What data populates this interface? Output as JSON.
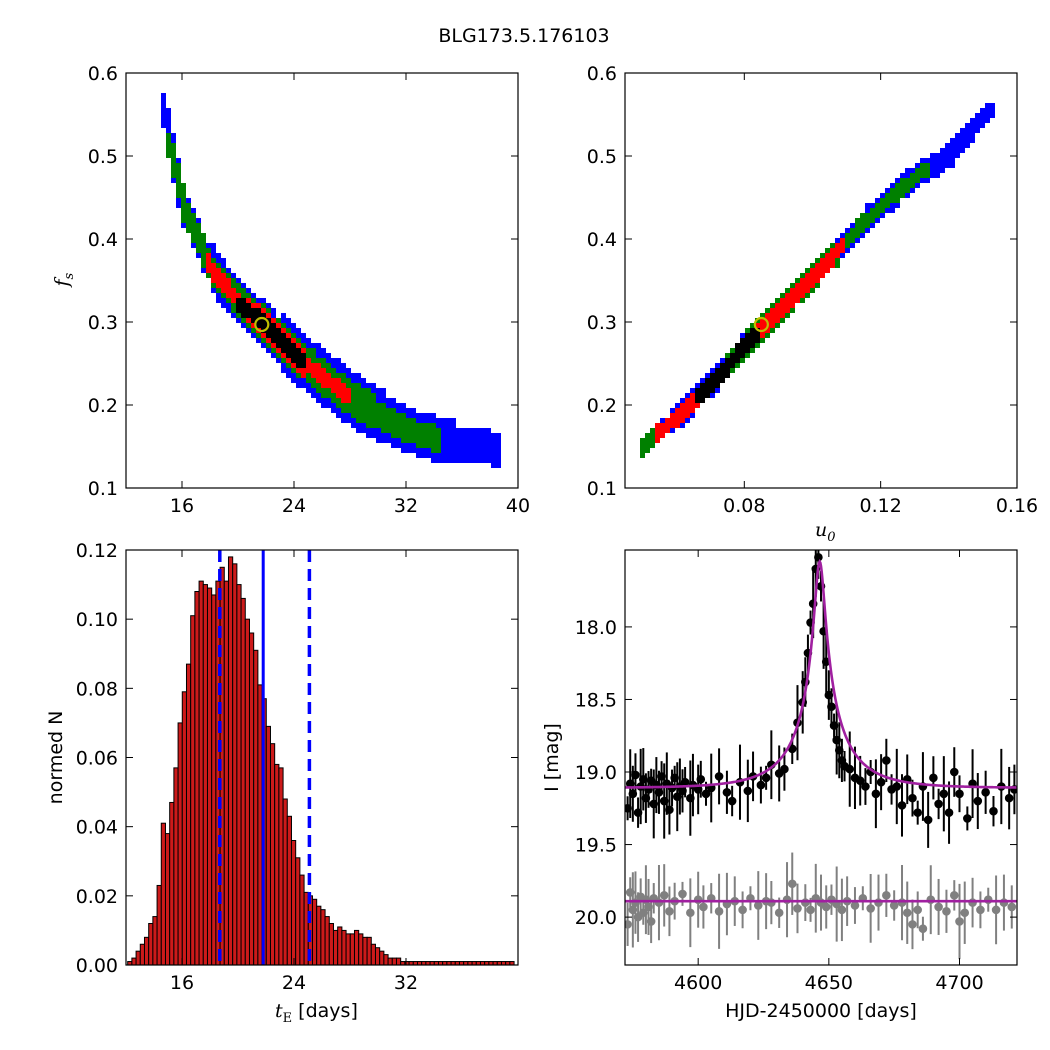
{
  "figure": {
    "title": "BLG173.5.176103"
  },
  "colors": {
    "contour3": "#0000ff",
    "contour2": "#008000",
    "contour1": "#ff0000",
    "core": "#000000",
    "best_fit_ring": "#bfbf00",
    "hist_bar": "#cc1a1a",
    "median_line": "#0000ff",
    "model_curve": "#a020a0",
    "data_main": "#000000",
    "data_second": "#808080"
  },
  "chart_data": [
    {
      "type": "heatmap",
      "panel": "tE-fs",
      "title": "",
      "xlabel": "",
      "ylabel_main": "f",
      "ylabel_sub": "s",
      "xlim": [
        12,
        40
      ],
      "ylim": [
        0.1,
        0.6
      ],
      "xticks": [
        "16",
        "24",
        "32",
        "40"
      ],
      "xtick_values": [
        16,
        24,
        32,
        40
      ],
      "yticks": [
        "0.1",
        "0.2",
        "0.3",
        "0.4",
        "0.5",
        "0.6"
      ],
      "ytick_values": [
        0.1,
        0.2,
        0.3,
        0.4,
        0.5,
        0.6
      ],
      "ridge": [
        [
          14.5,
          0.555
        ],
        [
          16,
          0.44
        ],
        [
          18,
          0.365
        ],
        [
          20,
          0.325
        ],
        [
          22,
          0.295
        ],
        [
          24,
          0.262
        ],
        [
          26,
          0.235
        ],
        [
          28,
          0.21
        ],
        [
          30,
          0.19
        ],
        [
          32,
          0.172
        ],
        [
          34,
          0.162
        ],
        [
          36,
          0.155
        ],
        [
          38.5,
          0.15
        ]
      ],
      "best_fit": {
        "x": 21.7,
        "y": 0.297
      },
      "regions": [
        {
          "level": "3-sigma",
          "width": 0.026,
          "t0": 0.0,
          "t1": 1.0
        },
        {
          "level": "2-sigma",
          "width": 0.016,
          "t0": 0.02,
          "t1": 0.82
        },
        {
          "level": "1-sigma",
          "width": 0.009,
          "t0": 0.13,
          "t1": 0.55
        },
        {
          "level": "core",
          "width": 0.003,
          "t0": 0.23,
          "t1": 0.42
        }
      ]
    },
    {
      "type": "heatmap",
      "panel": "u0-fs",
      "title": "",
      "xlabel_main": "u",
      "xlabel_sub": "0",
      "ylabel": "",
      "xlim": [
        0.045,
        0.16
      ],
      "ylim": [
        0.1,
        0.6
      ],
      "xticks": [
        "0.08",
        "0.12",
        "0.16"
      ],
      "xtick_values": [
        0.08,
        0.12,
        0.16
      ],
      "yticks": [
        "0.1",
        "0.2",
        "0.3",
        "0.4",
        "0.5",
        "0.6"
      ],
      "ytick_values": [
        0.1,
        0.2,
        0.3,
        0.4,
        0.5,
        0.6
      ],
      "ridge": [
        [
          0.049,
          0.15
        ],
        [
          0.06,
          0.19
        ],
        [
          0.072,
          0.24
        ],
        [
          0.085,
          0.297
        ],
        [
          0.1,
          0.36
        ],
        [
          0.115,
          0.425
        ],
        [
          0.13,
          0.48
        ],
        [
          0.14,
          0.505
        ],
        [
          0.152,
          0.56
        ]
      ],
      "best_fit": {
        "x": 0.085,
        "y": 0.297
      },
      "regions": [
        {
          "level": "3-sigma",
          "width": 0.013,
          "t0": 0.03,
          "t1": 1.0
        },
        {
          "level": "2-sigma",
          "width": 0.009,
          "t0": 0.0,
          "t1": 0.82
        },
        {
          "level": "1-sigma",
          "width": 0.005,
          "t0": 0.04,
          "t1": 0.6
        },
        {
          "level": "core",
          "width": 0.002,
          "t0": 0.16,
          "t1": 0.34
        }
      ]
    },
    {
      "type": "bar",
      "panel": "tE-histogram",
      "title": "",
      "xlabel_main": "t",
      "xlabel_sub": "E",
      "xlabel_rest": "  [days]",
      "ylabel": "normed N",
      "xlim": [
        12,
        40
      ],
      "ylim": [
        0,
        0.12
      ],
      "xticks": [
        "16",
        "24",
        "32"
      ],
      "xtick_values": [
        16,
        24,
        32
      ],
      "yticks": [
        "0.00",
        "0.02",
        "0.04",
        "0.06",
        "0.08",
        "0.10",
        "0.12"
      ],
      "ytick_values": [
        0,
        0.02,
        0.04,
        0.06,
        0.08,
        0.1,
        0.12
      ],
      "bin_start": 12.12,
      "bin_width": 0.3,
      "values": [
        0.001,
        0.002,
        0.004,
        0.006,
        0.008,
        0.012,
        0.014,
        0.023,
        0.041,
        0.038,
        0.047,
        0.057,
        0.07,
        0.079,
        0.087,
        0.101,
        0.108,
        0.111,
        0.11,
        0.109,
        0.107,
        0.111,
        0.115,
        0.111,
        0.118,
        0.116,
        0.11,
        0.106,
        0.1,
        0.096,
        0.091,
        0.081,
        0.077,
        0.069,
        0.064,
        0.058,
        0.057,
        0.048,
        0.043,
        0.036,
        0.031,
        0.026,
        0.021,
        0.02,
        0.019,
        0.017,
        0.016,
        0.014,
        0.012,
        0.01,
        0.011,
        0.01,
        0.009,
        0.009,
        0.01,
        0.009,
        0.008,
        0.008,
        0.006,
        0.005,
        0.004,
        0.003,
        0.002,
        0.002,
        0.002,
        0.001,
        0.001,
        0.001,
        0.001,
        0.001,
        0.001,
        0.001,
        0.001,
        0.001,
        0.001,
        0.001,
        0.001,
        0.001,
        0.001,
        0.001,
        0.001,
        0.001,
        0.001,
        0.001,
        0.001,
        0.001,
        0.001,
        0.001,
        0.001,
        0.001,
        0.001,
        0.001
      ],
      "median": 21.8,
      "interval": [
        18.7,
        25.1
      ]
    },
    {
      "type": "scatter",
      "panel": "light-curve",
      "title": "",
      "xlabel": "HJD-2450000 [days]",
      "ylabel": "I [mag]",
      "xlim": [
        4572,
        4722
      ],
      "ylim": [
        20.33,
        17.47
      ],
      "xticks": [
        "4600",
        "4650",
        "4700"
      ],
      "xtick_values": [
        4600,
        4650,
        4700
      ],
      "yticks": [
        "18.0",
        "18.5",
        "19.0",
        "19.5",
        "20.0"
      ],
      "ytick_values": [
        18.0,
        18.5,
        19.0,
        19.5,
        20.0
      ],
      "model": {
        "t0": 4646.5,
        "tE": 21.7,
        "u0": 0.085,
        "fs": 0.297,
        "baseline": 19.11,
        "second_baseline": 19.89
      },
      "series": [
        {
          "points": [
            [
              4573,
              19.25
            ],
            [
              4574,
              19.08
            ],
            [
              4575,
              19.15
            ],
            [
              4576,
              19.02
            ],
            [
              4577,
              19.28
            ],
            [
              4578,
              19.1
            ],
            [
              4579,
              19.05
            ],
            [
              4580,
              19.18
            ],
            [
              4581,
              19.12
            ],
            [
              4582,
              19.06
            ],
            [
              4583,
              19.22
            ],
            [
              4584,
              19.09
            ],
            [
              4585,
              19.14
            ],
            [
              4586,
              19.03
            ],
            [
              4587,
              19.2
            ],
            [
              4588,
              19.08
            ],
            [
              4589,
              19.26
            ],
            [
              4590,
              19.11
            ],
            [
              4591,
              19.04
            ],
            [
              4592,
              19.17
            ],
            [
              4593,
              19.1
            ],
            [
              4594,
              19.13
            ],
            [
              4595,
              19.07
            ],
            [
              4597,
              19.18
            ],
            [
              4598,
              19.09
            ],
            [
              4600,
              19.12
            ],
            [
              4601,
              19.05
            ],
            [
              4603,
              19.15
            ],
            [
              4605,
              19.11
            ],
            [
              4608,
              19.03
            ],
            [
              4611,
              19.14
            ],
            [
              4613,
              19.2
            ],
            [
              4616,
              19.07
            ],
            [
              4619,
              19.13
            ],
            [
              4621,
              19.03
            ],
            [
              4624,
              19.09
            ],
            [
              4626,
              19.04
            ],
            [
              4628,
              18.95
            ],
            [
              4631,
              19.01
            ],
            [
              4633,
              18.98
            ],
            [
              4636,
              18.84
            ],
            [
              4638,
              18.66
            ],
            [
              4640,
              18.52
            ],
            [
              4641,
              18.38
            ],
            [
              4642,
              18.18
            ],
            [
              4643,
              17.97
            ],
            [
              4644,
              17.84
            ],
            [
              4645,
              17.6
            ],
            [
              4646,
              17.52
            ],
            [
              4647,
              17.72
            ],
            [
              4648,
              18.03
            ],
            [
              4649,
              18.24
            ],
            [
              4650,
              18.47
            ],
            [
              4651,
              18.55
            ],
            [
              4652,
              18.68
            ],
            [
              4653,
              18.78
            ],
            [
              4654,
              18.85
            ],
            [
              4655,
              18.92
            ],
            [
              4656,
              18.96
            ],
            [
              4658,
              18.98
            ],
            [
              4660,
              19.04
            ],
            [
              4662,
              19.06
            ],
            [
              4664,
              19.1
            ],
            [
              4666,
              19.0
            ],
            [
              4668,
              19.15
            ],
            [
              4670,
              19.07
            ],
            [
              4672,
              18.92
            ],
            [
              4674,
              19.12
            ],
            [
              4676,
              19.1
            ],
            [
              4678,
              19.23
            ],
            [
              4680,
              19.05
            ],
            [
              4682,
              19.18
            ],
            [
              4684,
              19.28
            ],
            [
              4686,
              19.1
            ],
            [
              4688,
              19.33
            ],
            [
              4690,
              19.04
            ],
            [
              4692,
              19.22
            ],
            [
              4694,
              19.15
            ],
            [
              4696,
              19.28
            ],
            [
              4698,
              19.0
            ],
            [
              4700,
              19.15
            ],
            [
              4703,
              19.32
            ],
            [
              4705,
              19.08
            ],
            [
              4707,
              19.2
            ],
            [
              4710,
              19.14
            ],
            [
              4713,
              19.27
            ],
            [
              4716,
              19.1
            ],
            [
              4719,
              19.18
            ],
            [
              4721,
              19.12
            ]
          ]
        },
        {
          "points": [
            [
              4573,
              20.05
            ],
            [
              4574,
              19.83
            ],
            [
              4575,
              19.95
            ],
            [
              4576,
              19.9
            ],
            [
              4577,
              20.0
            ],
            [
              4578,
              19.86
            ],
            [
              4579,
              19.97
            ],
            [
              4580,
              19.88
            ],
            [
              4581,
              19.93
            ],
            [
              4582,
              20.03
            ],
            [
              4583,
              19.87
            ],
            [
              4585,
              19.9
            ],
            [
              4587,
              19.85
            ],
            [
              4589,
              19.96
            ],
            [
              4591,
              19.89
            ],
            [
              4594,
              19.84
            ],
            [
              4597,
              19.97
            ],
            [
              4600,
              19.88
            ],
            [
              4602,
              19.93
            ],
            [
              4605,
              19.87
            ],
            [
              4608,
              19.96
            ],
            [
              4611,
              19.91
            ],
            [
              4614,
              19.89
            ],
            [
              4617,
              19.95
            ],
            [
              4620,
              19.87
            ],
            [
              4623,
              19.92
            ],
            [
              4626,
              19.89
            ],
            [
              4628,
              19.9
            ],
            [
              4631,
              19.97
            ],
            [
              4634,
              19.88
            ],
            [
              4636,
              19.77
            ],
            [
              4638,
              19.94
            ],
            [
              4641,
              19.9
            ],
            [
              4643,
              19.95
            ],
            [
              4645,
              19.87
            ],
            [
              4647,
              19.9
            ],
            [
              4649,
              19.93
            ],
            [
              4651,
              19.88
            ],
            [
              4653,
              19.91
            ],
            [
              4655,
              19.95
            ],
            [
              4657,
              19.89
            ],
            [
              4660,
              19.92
            ],
            [
              4663,
              19.87
            ],
            [
              4666,
              19.94
            ],
            [
              4669,
              19.9
            ],
            [
              4672,
              19.85
            ],
            [
              4675,
              19.92
            ],
            [
              4678,
              19.9
            ],
            [
              4680,
              19.97
            ],
            [
              4682,
              20.05
            ],
            [
              4684,
              19.95
            ],
            [
              4686,
              20.08
            ],
            [
              4689,
              19.88
            ],
            [
              4692,
              19.93
            ],
            [
              4695,
              19.96
            ],
            [
              4698,
              19.85
            ],
            [
              4700,
              20.03
            ],
            [
              4702,
              19.97
            ],
            [
              4705,
              19.9
            ],
            [
              4708,
              19.95
            ],
            [
              4711,
              19.88
            ],
            [
              4714,
              19.95
            ],
            [
              4717,
              19.9
            ],
            [
              4720,
              19.93
            ]
          ]
        }
      ]
    }
  ]
}
